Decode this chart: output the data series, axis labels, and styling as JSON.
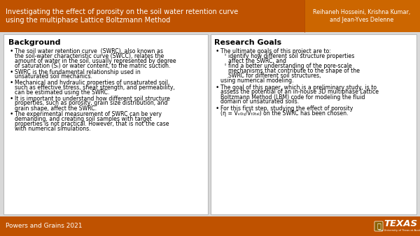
{
  "title_text": "Investigating the effect of porosity on the soil water retention curve\nusing the multiphase Lattice Boltzmann Method",
  "authors_text": "Reihaneh Hosseini, Krishna Kumar,\nand Jean-Yves Delenne",
  "header_bg_color": "#BF5200",
  "header_author_bg_color": "#CC6600",
  "footer_bg_color": "#BF5200",
  "footer_text": "Powers and Grains 2021",
  "main_bg_color": "#D8D8D8",
  "panel_bg_color": "#FFFFFF",
  "title_color": "#FFFFFF",
  "footer_text_color": "#FFFFFF",
  "left_title": "Background",
  "left_bullets": [
    "The soil water retention curve  (SWRC), also known as\nthe soil-water characteristic curve (SWCC), relates the\namount of water in the soil, usually represented by degree\nof saturation (Sᵣ) or water content, to the matric suction.",
    "SWRC is the fundamental relationship used in\nunsaturated soil mechanics.",
    "Mechanical and hydraulic properties of unsaturated soil,\nsuch as effective stress, shear strength, and permeability,\ncan be estimated using the SWRC.",
    "It is important to understand how different soil structure\nproperties, such as porosity, grain size distribution, and\ngrain shape, affect the SWRC.",
    "The experimental measurement of SWRC can be very\ndemanding, and creating soil samples with target\nproperties is not practical. However, that is not the case\nwith numerical simulations."
  ],
  "right_title": "Research Goals",
  "right_content": [
    {
      "type": "bullet",
      "text": "The ultimate goals of this project are to:",
      "sub": [
        "identify how different soil structure properties\naffect the SWRC, and",
        "find a better understanding of the pore-scale\nmechanisms that contribute to the shape of the\nSWRC for different soil structures,"
      ],
      "after_sub": "using numerical modeling."
    },
    {
      "type": "bullet",
      "text": "The goal of this paper, which is a preliminary study, is to\nassess the potential of an in-house 3D multiphase Lattice\nBoltzmann Method (LBM) code for modeling the fluid\ndomain of unsaturated soils."
    },
    {
      "type": "bullet",
      "text": "For this first step, studying the effect of porosity\n(η = Vᵥ₀ᵢᵧ/Vₜ₀ₜₐₗ) on the SWRC has been chosen."
    }
  ]
}
